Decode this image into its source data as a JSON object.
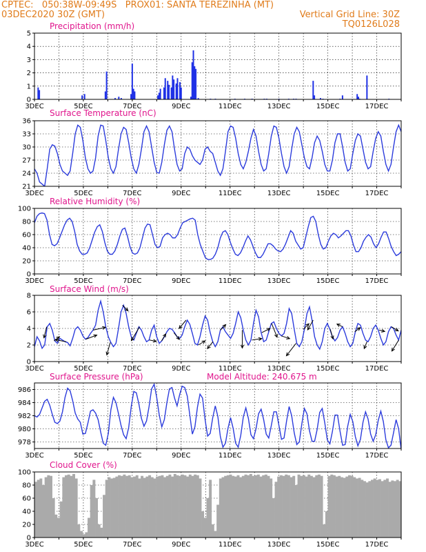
{
  "header": {
    "line1_left": "CPTEC:   050:38W-09:49S   PROX01: SANTA TEREZINHA (MT)",
    "line2_left": "03DEC2020 30Z (GMT)",
    "line2_right": "Vertical Grid Line: 30Z",
    "line3_right": "TQ0126L028"
  },
  "x_tick_labels": [
    "3DEC",
    "5DEC",
    "7DEC",
    "9DEC",
    "11DEC",
    "13DEC",
    "15DEC",
    "17DEC"
  ],
  "colors": {
    "line": "#2b3bdc",
    "bar": "#1e30e6",
    "cloud": "#aaaaaa",
    "title": "#e0148c",
    "header": "#e07b1a"
  },
  "chart_data": [
    {
      "id": "precip",
      "type": "bar",
      "title": "Precipitation (mm/h)",
      "xlim": [
        0,
        15
      ],
      "ylim": [
        0,
        5
      ],
      "yticks": [
        0,
        1,
        2,
        3,
        4,
        5
      ],
      "x": [
        0.15,
        0.2,
        1.95,
        2.05,
        2.9,
        2.95,
        3.3,
        3.45,
        3.55,
        3.95,
        4.0,
        4.05,
        4.1,
        5.05,
        5.1,
        5.15,
        5.3,
        5.35,
        5.45,
        5.5,
        5.6,
        5.65,
        5.7,
        5.8,
        5.85,
        5.95,
        6.0,
        6.4,
        6.45,
        6.5,
        6.55,
        6.6,
        6.7,
        7.2,
        7.4,
        8.2,
        8.6,
        8.9,
        9.4,
        9.5,
        10.0,
        10.4,
        10.6,
        10.7,
        11.4,
        11.45,
        11.7,
        11.8,
        12.5,
        12.6,
        13.2,
        13.25,
        13.3,
        13.6,
        14.5
      ],
      "values": [
        0.9,
        0.7,
        0.3,
        0.4,
        0.6,
        2.1,
        0.1,
        0.2,
        0.1,
        0.4,
        2.7,
        0.8,
        0.6,
        0.3,
        0.5,
        0.8,
        0.9,
        1.6,
        1.4,
        1.1,
        0.9,
        1.8,
        1.5,
        1.2,
        1.6,
        1.3,
        0.9,
        0.2,
        2.8,
        3.7,
        2.5,
        2.3,
        0.1,
        0.05,
        0.05,
        0.05,
        0.05,
        0.05,
        0.05,
        0.05,
        0.05,
        0.05,
        0.05,
        0.05,
        1.4,
        0.3,
        0.1,
        0.05,
        0.05,
        0.3,
        0.4,
        0.2,
        0.05,
        1.8,
        0.05
      ]
    },
    {
      "id": "temp",
      "type": "line",
      "title": "Surface Temperature (nC)",
      "xlim": [
        0,
        15
      ],
      "ylim": [
        21,
        36
      ],
      "yticks": [
        21,
        24,
        27,
        30,
        33,
        36
      ],
      "y": [
        25.0,
        24.0,
        22.0,
        21.5,
        21.0,
        25.0,
        29.5,
        30.5,
        30.2,
        28.5,
        26.0,
        24.5,
        24.0,
        23.5,
        24.5,
        28.5,
        33.0,
        35.0,
        34.5,
        31.5,
        27.5,
        25.0,
        24.0,
        24.5,
        27.5,
        32.5,
        35.0,
        34.8,
        31.5,
        27.5,
        25.0,
        24.0,
        25.5,
        29.5,
        33.0,
        34.5,
        34.0,
        31.0,
        27.5,
        25.0,
        24.0,
        26.0,
        29.5,
        33.5,
        34.8,
        33.5,
        30.0,
        26.5,
        24.2,
        24.0,
        26.5,
        30.5,
        33.8,
        34.8,
        33.5,
        29.5,
        26.0,
        24.5,
        25.0,
        28.5,
        30.0,
        29.5,
        28.0,
        27.0,
        26.5,
        26.0,
        27.0,
        29.5,
        30.0,
        29.0,
        28.5,
        26.5,
        24.5,
        23.5,
        25.0,
        29.0,
        33.5,
        34.8,
        34.5,
        32.0,
        28.5,
        26.0,
        25.0,
        26.5,
        29.0,
        32.0,
        34.0,
        32.5,
        29.0,
        26.0,
        24.5,
        25.0,
        28.5,
        32.5,
        34.8,
        34.5,
        32.0,
        28.5,
        25.5,
        24.0,
        25.5,
        29.5,
        33.0,
        34.5,
        33.5,
        30.5,
        27.5,
        25.5,
        25.0,
        27.5,
        31.0,
        32.5,
        31.5,
        29.0,
        26.0,
        24.5,
        24.5,
        27.0,
        31.0,
        33.0,
        33.0,
        30.0,
        26.5,
        24.5,
        25.0,
        28.5,
        31.5,
        33.0,
        32.5,
        29.5,
        26.5,
        25.0,
        25.5,
        29.0,
        32.0,
        33.5,
        32.5,
        29.0,
        26.0,
        24.5,
        26.0,
        30.0,
        33.5,
        35.0,
        33.5
      ]
    },
    {
      "id": "rh",
      "type": "line",
      "title": "Relative Humidity (%)",
      "xlim": [
        0,
        15
      ],
      "ylim": [
        0,
        100
      ],
      "yticks": [
        0,
        20,
        40,
        60,
        80,
        100
      ],
      "y": [
        78,
        88,
        92,
        93,
        92,
        82,
        60,
        45,
        43,
        46,
        55,
        65,
        75,
        82,
        85,
        80,
        65,
        45,
        35,
        30,
        30,
        32,
        40,
        52,
        64,
        72,
        75,
        65,
        48,
        35,
        30,
        30,
        35,
        45,
        58,
        68,
        70,
        58,
        42,
        32,
        30,
        32,
        40,
        55,
        70,
        76,
        75,
        60,
        45,
        40,
        42,
        55,
        60,
        62,
        60,
        55,
        55,
        60,
        70,
        78,
        80,
        82,
        84,
        85,
        82,
        60,
        45,
        35,
        25,
        22,
        22,
        24,
        30,
        40,
        55,
        64,
        66,
        60,
        48,
        38,
        30,
        28,
        32,
        40,
        50,
        58,
        52,
        42,
        32,
        25,
        25,
        30,
        38,
        46,
        46,
        43,
        38,
        35,
        34,
        38,
        46,
        56,
        66,
        62,
        50,
        44,
        38,
        40,
        56,
        72,
        86,
        88,
        80,
        60,
        45,
        38,
        40,
        50,
        58,
        62,
        60,
        55,
        58,
        62,
        66,
        66,
        58,
        44,
        34,
        34,
        40,
        50,
        56,
        60,
        56,
        46,
        40,
        46,
        56,
        64,
        64,
        54,
        42,
        34,
        28,
        30,
        34
      ]
    },
    {
      "id": "wind",
      "type": "line",
      "title": "Surface Wind (m/s)",
      "xlim": [
        0,
        15
      ],
      "ylim": [
        0,
        8
      ],
      "yticks": [
        0,
        2,
        4,
        6,
        8
      ],
      "y": [
        1.8,
        3.0,
        2.5,
        1.6,
        2.0,
        4.2,
        4.6,
        3.8,
        2.5,
        2.2,
        2.8,
        2.6,
        2.4,
        2.3,
        1.9,
        2.8,
        3.9,
        4.2,
        3.8,
        3.1,
        2.7,
        2.9,
        3.4,
        3.8,
        4.4,
        6.2,
        7.3,
        6.0,
        4.2,
        3.0,
        2.3,
        1.8,
        2.2,
        4.0,
        6.0,
        6.8,
        5.8,
        4.2,
        3.0,
        2.6,
        3.4,
        4.2,
        3.8,
        3.0,
        2.4,
        2.6,
        3.8,
        4.4,
        3.0,
        2.2,
        2.5,
        3.0,
        3.6,
        4.0,
        3.9,
        3.5,
        3.0,
        2.8,
        3.2,
        4.2,
        5.0,
        4.5,
        3.4,
        2.2,
        2.0,
        3.0,
        4.4,
        5.5,
        5.0,
        3.5,
        2.4,
        1.8,
        2.4,
        3.8,
        4.2,
        3.6,
        3.2,
        2.8,
        3.4,
        4.6,
        6.0,
        5.3,
        3.8,
        2.6,
        2.0,
        2.6,
        4.6,
        6.2,
        5.4,
        3.5,
        2.4,
        2.6,
        3.6,
        4.6,
        4.8,
        4.0,
        3.4,
        3.1,
        3.4,
        4.6,
        6.4,
        5.8,
        3.9,
        2.2,
        1.8,
        2.4,
        3.9,
        5.8,
        6.6,
        5.0,
        3.0,
        2.0,
        1.5,
        2.4,
        4.0,
        4.6,
        3.9,
        3.0,
        2.5,
        2.9,
        3.8,
        4.2,
        3.4,
        2.4,
        1.8,
        2.2,
        3.6,
        4.6,
        4.4,
        3.4,
        2.6,
        2.4,
        3.0,
        4.0,
        4.4,
        3.8,
        2.8,
        2.0,
        2.4,
        3.6,
        4.2,
        4.0,
        3.2,
        2.6,
        3.8
      ],
      "arrows": [
        {
          "x": 0.5,
          "dx": -4,
          "dy": 16
        },
        {
          "x": 0.8,
          "dx": 8,
          "dy": -6
        },
        {
          "x": 1.3,
          "dx": -16,
          "dy": -3
        },
        {
          "x": 2.1,
          "dx": 16,
          "dy": -6
        },
        {
          "x": 2.4,
          "dx": 18,
          "dy": -4
        },
        {
          "x": 3.1,
          "dx": -5,
          "dy": 18
        },
        {
          "x": 3.6,
          "dx": 8,
          "dy": 8
        },
        {
          "x": 4.3,
          "dx": -12,
          "dy": 20
        },
        {
          "x": 4.7,
          "dx": 10,
          "dy": 2
        },
        {
          "x": 5.2,
          "dx": 6,
          "dy": -10
        },
        {
          "x": 5.7,
          "dx": 8,
          "dy": 10
        },
        {
          "x": 6.2,
          "dx": -10,
          "dy": 12
        },
        {
          "x": 6.7,
          "dx": 10,
          "dy": -6
        },
        {
          "x": 7.3,
          "dx": -8,
          "dy": 10
        },
        {
          "x": 7.6,
          "dx": 8,
          "dy": -8
        },
        {
          "x": 8.5,
          "dx": 0,
          "dy": 26
        },
        {
          "x": 8.9,
          "dx": 14,
          "dy": -2
        },
        {
          "x": 9.3,
          "dx": 12,
          "dy": -6
        },
        {
          "x": 9.7,
          "dx": 8,
          "dy": 20
        },
        {
          "x": 10.1,
          "dx": 12,
          "dy": 4
        },
        {
          "x": 10.7,
          "dx": -14,
          "dy": 18
        },
        {
          "x": 11.0,
          "dx": 8,
          "dy": -8
        },
        {
          "x": 11.4,
          "dx": -8,
          "dy": 14
        },
        {
          "x": 12.1,
          "dx": 4,
          "dy": 14
        },
        {
          "x": 12.6,
          "dx": -8,
          "dy": -4
        },
        {
          "x": 13.1,
          "dx": 8,
          "dy": -6
        },
        {
          "x": 13.6,
          "dx": -4,
          "dy": 10
        },
        {
          "x": 14.1,
          "dx": 8,
          "dy": 2
        },
        {
          "x": 14.6,
          "dx": 10,
          "dy": 6
        },
        {
          "x": 14.9,
          "dx": -10,
          "dy": 16
        }
      ]
    },
    {
      "id": "pressure",
      "type": "line",
      "title": "Surface Pressure (hPa)",
      "annotation": "Model Altitude: 240.675  m",
      "xlim": [
        0,
        15
      ],
      "ylim": [
        977,
        987
      ],
      "yticks": [
        978,
        980,
        982,
        984,
        986
      ],
      "y": [
        982.0,
        981.8,
        982.2,
        983.2,
        984.2,
        984.5,
        983.6,
        982.2,
        981.0,
        980.8,
        981.2,
        982.6,
        984.8,
        986.2,
        985.8,
        984.3,
        982.4,
        981.5,
        981.0,
        979.2,
        979.3,
        980.9,
        982.7,
        982.9,
        982.4,
        981.4,
        979.5,
        977.8,
        977.5,
        979.3,
        982.9,
        984.8,
        984.0,
        982.3,
        980.5,
        979.1,
        978.5,
        980.2,
        983.4,
        985.7,
        985.5,
        983.8,
        981.6,
        980.4,
        981.2,
        983.4,
        986.1,
        986.8,
        984.8,
        982.1,
        980.3,
        981.4,
        984.0,
        986.1,
        986.3,
        984.7,
        983.5,
        985.2,
        986.5,
        986.3,
        985.0,
        982.1,
        979.2,
        980.3,
        983.3,
        985.3,
        984.7,
        981.4,
        978.9,
        979.3,
        981.7,
        983.5,
        981.9,
        978.8,
        977.2,
        977.8,
        980.1,
        981.7,
        980.1,
        977.8,
        977.2,
        979.0,
        981.8,
        983.2,
        981.6,
        979.1,
        978.5,
        980.0,
        982.3,
        983.0,
        981.4,
        979.2,
        978.6,
        980.5,
        982.6,
        982.6,
        980.5,
        978.4,
        978.6,
        981.2,
        983.4,
        982.0,
        979.4,
        977.6,
        978.0,
        980.8,
        983.1,
        982.3,
        979.7,
        978.1,
        978.1,
        979.9,
        982.5,
        983.1,
        980.9,
        978.3,
        977.7,
        979.6,
        982.1,
        982.1,
        979.6,
        977.5,
        977.6,
        980.4,
        982.2,
        981.1,
        978.8,
        977.4,
        978.4,
        981.0,
        982.6,
        981.5,
        979.2,
        978.1,
        979.1,
        981.3,
        982.7,
        981.1,
        978.3,
        977.1,
        977.5,
        979.4,
        981.4,
        980.0,
        976.8
      ]
    },
    {
      "id": "cloud",
      "type": "area",
      "title": "Cloud Cover (%)",
      "xlim": [
        0,
        15
      ],
      "ylim": [
        0,
        100
      ],
      "yticks": [
        0,
        20,
        40,
        60,
        80,
        100
      ],
      "y": [
        85,
        88,
        90,
        80,
        92,
        95,
        94,
        60,
        35,
        30,
        55,
        92,
        95,
        96,
        94,
        97,
        90,
        20,
        10,
        5,
        8,
        30,
        80,
        88,
        60,
        20,
        15,
        65,
        88,
        92,
        90,
        91,
        93,
        95,
        94,
        96,
        94,
        95,
        92,
        93,
        95,
        90,
        94,
        91,
        93,
        95,
        92,
        90,
        93,
        94,
        95,
        92,
        94,
        96,
        93,
        97,
        95,
        94,
        96,
        95,
        93,
        96,
        94,
        96,
        95,
        90,
        40,
        30,
        60,
        88,
        20,
        10,
        50,
        90,
        92,
        94,
        95,
        96,
        94,
        93,
        95,
        92,
        94,
        96,
        95,
        97,
        94,
        95,
        96,
        93,
        95,
        96,
        94,
        90,
        60,
        85,
        93,
        95,
        94,
        96,
        95,
        92,
        94,
        80,
        96,
        94,
        95,
        93,
        96,
        94,
        92,
        95,
        96,
        94,
        20,
        40,
        94,
        96,
        95,
        93,
        94,
        92,
        91,
        93,
        95,
        94,
        92,
        90,
        91,
        88,
        86,
        84,
        86,
        88,
        90,
        88,
        89,
        86,
        88,
        90,
        85,
        87,
        86,
        88,
        86
      ]
    }
  ]
}
